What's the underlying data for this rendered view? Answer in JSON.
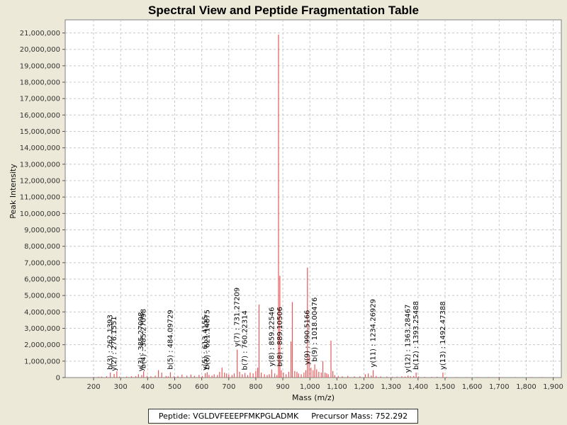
{
  "chart_data": {
    "type": "bar",
    "title": "Spectral View and Peptide Fragmentation Table",
    "xlabel": "Mass (m/z)",
    "ylabel": "Peak Intensity",
    "xlim": [
      95,
      1930
    ],
    "ylim": [
      0,
      21800000
    ],
    "x_ticks": [
      200,
      300,
      400,
      500,
      600,
      700,
      800,
      900,
      1000,
      1100,
      1200,
      1300,
      1400,
      1500,
      1600,
      1700,
      1800,
      1900
    ],
    "x_tick_labels": [
      "200",
      "300",
      "400",
      "500",
      "600",
      "700",
      "800",
      "900",
      "1,000",
      "1,100",
      "1,200",
      "1,300",
      "1,400",
      "1,500",
      "1,600",
      "1,700",
      "1,800",
      "1,900"
    ],
    "y_ticks": [
      0,
      1000000,
      2000000,
      3000000,
      4000000,
      5000000,
      6000000,
      7000000,
      8000000,
      9000000,
      10000000,
      11000000,
      12000000,
      13000000,
      14000000,
      15000000,
      16000000,
      17000000,
      18000000,
      19000000,
      20000000,
      21000000
    ],
    "y_tick_labels": [
      "0",
      "1,000,000",
      "2,000,000",
      "3,000,000",
      "4,000,000",
      "5,000,000",
      "6,000,000",
      "7,000,000",
      "8,000,000",
      "9,000,000",
      "10,000,000",
      "11,000,000",
      "12,000,000",
      "13,000,000",
      "14,000,000",
      "15,000,000",
      "16,000,000",
      "17,000,000",
      "18,000,000",
      "19,000,000",
      "20,000,000",
      "21,000,000"
    ],
    "grid": true,
    "peak_color": "#e8595a",
    "peaks": [
      [
        200,
        30000
      ],
      [
        218,
        50000
      ],
      [
        230,
        60000
      ],
      [
        248,
        80000
      ],
      [
        262,
        300000
      ],
      [
        276,
        220000
      ],
      [
        286,
        380000
      ],
      [
        296,
        60000
      ],
      [
        322,
        60000
      ],
      [
        340,
        80000
      ],
      [
        356,
        90000
      ],
      [
        366,
        200000
      ],
      [
        378,
        150000
      ],
      [
        385,
        380000
      ],
      [
        398,
        100000
      ],
      [
        412,
        80000
      ],
      [
        428,
        120000
      ],
      [
        440,
        450000
      ],
      [
        452,
        300000
      ],
      [
        468,
        100000
      ],
      [
        476,
        70000
      ],
      [
        484,
        320000
      ],
      [
        498,
        90000
      ],
      [
        512,
        100000
      ],
      [
        527,
        180000
      ],
      [
        545,
        120000
      ],
      [
        560,
        180000
      ],
      [
        573,
        110000
      ],
      [
        590,
        160000
      ],
      [
        602,
        100000
      ],
      [
        613,
        260000
      ],
      [
        620,
        330000
      ],
      [
        627,
        160000
      ],
      [
        638,
        120000
      ],
      [
        646,
        200000
      ],
      [
        658,
        150000
      ],
      [
        666,
        340000
      ],
      [
        675,
        600000
      ],
      [
        684,
        300000
      ],
      [
        692,
        250000
      ],
      [
        700,
        180000
      ],
      [
        712,
        150000
      ],
      [
        720,
        250000
      ],
      [
        731,
        1700000
      ],
      [
        740,
        350000
      ],
      [
        750,
        200000
      ],
      [
        760,
        280000
      ],
      [
        770,
        150000
      ],
      [
        779,
        300000
      ],
      [
        790,
        250000
      ],
      [
        800,
        400000
      ],
      [
        807,
        600000
      ],
      [
        812,
        4450000
      ],
      [
        820,
        300000
      ],
      [
        832,
        200000
      ],
      [
        842,
        150000
      ],
      [
        850,
        200000
      ],
      [
        859,
        500000
      ],
      [
        870,
        250000
      ],
      [
        878,
        150000
      ],
      [
        884,
        20900000
      ],
      [
        889,
        6200000
      ],
      [
        894,
        450000
      ],
      [
        902,
        300000
      ],
      [
        912,
        200000
      ],
      [
        922,
        350000
      ],
      [
        930,
        2200000
      ],
      [
        935,
        4600000
      ],
      [
        944,
        400000
      ],
      [
        952,
        350000
      ],
      [
        958,
        250000
      ],
      [
        968,
        200000
      ],
      [
        978,
        300000
      ],
      [
        985,
        450000
      ],
      [
        991,
        6700000
      ],
      [
        997,
        1400000
      ],
      [
        1004,
        600000
      ],
      [
        1012,
        450000
      ],
      [
        1018,
        800000
      ],
      [
        1025,
        500000
      ],
      [
        1033,
        350000
      ],
      [
        1042,
        300000
      ],
      [
        1048,
        1000000
      ],
      [
        1056,
        300000
      ],
      [
        1062,
        250000
      ],
      [
        1068,
        200000
      ],
      [
        1078,
        2250000
      ],
      [
        1085,
        400000
      ],
      [
        1092,
        150000
      ],
      [
        1105,
        100000
      ],
      [
        1120,
        80000
      ],
      [
        1140,
        100000
      ],
      [
        1165,
        70000
      ],
      [
        1185,
        80000
      ],
      [
        1205,
        200000
      ],
      [
        1216,
        250000
      ],
      [
        1227,
        120000
      ],
      [
        1234,
        450000
      ],
      [
        1245,
        100000
      ],
      [
        1262,
        70000
      ],
      [
        1285,
        60000
      ],
      [
        1305,
        50000
      ],
      [
        1322,
        60000
      ],
      [
        1340,
        80000
      ],
      [
        1352,
        60000
      ],
      [
        1363,
        120000
      ],
      [
        1372,
        80000
      ],
      [
        1384,
        100000
      ],
      [
        1393,
        300000
      ],
      [
        1402,
        70000
      ],
      [
        1425,
        40000
      ],
      [
        1450,
        40000
      ],
      [
        1470,
        50000
      ],
      [
        1492,
        300000
      ],
      [
        1505,
        40000
      ],
      [
        1540,
        30000
      ],
      [
        1580,
        30000
      ],
      [
        1620,
        30000
      ],
      [
        1660,
        30000
      ],
      [
        1700,
        40000
      ],
      [
        1760,
        30000
      ],
      [
        1820,
        30000
      ],
      [
        1860,
        30000
      ],
      [
        1900,
        20000
      ]
    ],
    "annotations": [
      {
        "text": "b(3) : 262.1393",
        "x": 262,
        "y": 300000
      },
      {
        "text": "y(2) : 276.1551",
        "x": 276,
        "y": 220000
      },
      {
        "text": "y(3) : 385.27098",
        "x": 376,
        "y": 200000
      },
      {
        "text": "b(4) : 385.27098",
        "x": 385,
        "y": 380000
      },
      {
        "text": "b(5) : 484.09729",
        "x": 484,
        "y": 320000
      },
      {
        "text": "y(5) : 613.4155",
        "x": 613,
        "y": 260000
      },
      {
        "text": "b(6) : 621.14875",
        "x": 621,
        "y": 330000
      },
      {
        "text": "y(7) : 731.27209",
        "x": 731,
        "y": 1700000
      },
      {
        "text": "b(7) : 760.22314",
        "x": 760,
        "y": 280000
      },
      {
        "text": "y(8) : 859.22546",
        "x": 859,
        "y": 500000
      },
      {
        "text": "b(8) : 889.10506",
        "x": 889,
        "y": 500000
      },
      {
        "text": "y(9) : 990.5166",
        "x": 990,
        "y": 600000
      },
      {
        "text": "b(9) : 1018.00476",
        "x": 1018,
        "y": 800000
      },
      {
        "text": "y(11) : 1234.26929",
        "x": 1234,
        "y": 450000
      },
      {
        "text": "y(12) : 1363.28467",
        "x": 1363,
        "y": 120000
      },
      {
        "text": "b(12) : 1393.25488",
        "x": 1393,
        "y": 300000
      },
      {
        "text": "y(13) : 1492.47388",
        "x": 1492,
        "y": 300000
      }
    ]
  },
  "footer": {
    "peptide": "Peptide: VGLDVFEEEPFMKPGLADMK",
    "precursor": "Precursor Mass: 752.292"
  }
}
